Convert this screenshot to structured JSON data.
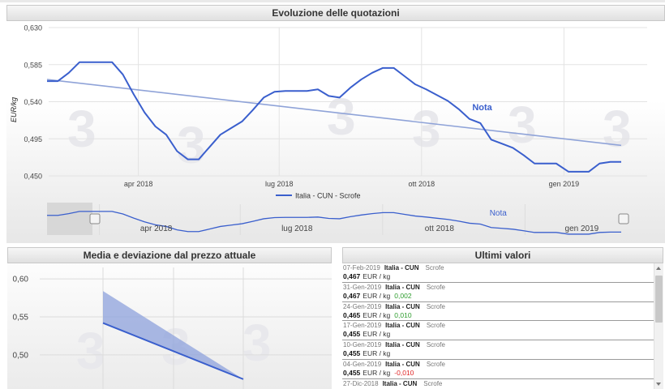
{
  "main_chart": {
    "title": "Evoluzione delle quotazioni",
    "ylabel": "EUR/kg",
    "legend": "Italia - CUN - Scrofe",
    "annotation": "Nota",
    "series_color": "#3a5fcd",
    "trend_color": "#8fa3d8",
    "selection_color": "#d7d7d7"
  },
  "navigator": {
    "annotation": "Nota",
    "tick_labels": [
      "apr 2018",
      "lug 2018",
      "ott 2018",
      "gen 2019"
    ]
  },
  "stats_panel": {
    "title": "Media e deviazione dal prezzo attuale"
  },
  "list_panel": {
    "title": "Ultimi valori",
    "rows": [
      {
        "date": "07-Feb-2019",
        "name": "Italia - CUN",
        "category": "Scrofe",
        "value": "0,467",
        "unit": "EUR / kg",
        "delta": "",
        "delta_sign": ""
      },
      {
        "date": "31-Gen-2019",
        "name": "Italia - CUN",
        "category": "Scrofe",
        "value": "0,467",
        "unit": "EUR / kg",
        "delta": "0,002",
        "delta_sign": "pos"
      },
      {
        "date": "24-Gen-2019",
        "name": "Italia - CUN",
        "category": "Scrofe",
        "value": "0,465",
        "unit": "EUR / kg",
        "delta": "0,010",
        "delta_sign": "pos"
      },
      {
        "date": "17-Gen-2019",
        "name": "Italia - CUN",
        "category": "Scrofe",
        "value": "0,455",
        "unit": "EUR / kg",
        "delta": "",
        "delta_sign": ""
      },
      {
        "date": "10-Gen-2019",
        "name": "Italia - CUN",
        "category": "Scrofe",
        "value": "0,455",
        "unit": "EUR / kg",
        "delta": "",
        "delta_sign": ""
      },
      {
        "date": "04-Gen-2019",
        "name": "Italia - CUN",
        "category": "Scrofe",
        "value": "0,455",
        "unit": "EUR / kg",
        "delta": "-0,010",
        "delta_sign": "neg"
      },
      {
        "date": "27-Dic-2018",
        "name": "Italia - CUN",
        "category": "Scrofe",
        "value": "",
        "unit": "",
        "delta": "",
        "delta_sign": ""
      }
    ]
  },
  "chart_data": [
    {
      "type": "line",
      "title": "Evoluzione delle quotazioni",
      "xlabel": "",
      "ylabel": "EUR/kg",
      "ylim": [
        0.45,
        0.63
      ],
      "y_ticks": [
        "0,630",
        "0,585",
        "0,540",
        "0,495",
        "0,450"
      ],
      "y_tick_values": [
        0.63,
        0.585,
        0.54,
        0.495,
        0.45
      ],
      "x_ticks": [
        "apr 2018",
        "lug 2018",
        "ott 2018",
        "gen 2019"
      ],
      "x_tick_dates": [
        "2018-04-01",
        "2018-07-01",
        "2018-10-01",
        "2019-01-01"
      ],
      "xlim": [
        "2018-02-01",
        "2019-02-07"
      ],
      "grid": true,
      "legend_position": "bottom",
      "series": [
        {
          "name": "Italia - CUN - Scrofe",
          "x": [
            "2018-02-01",
            "2018-02-08",
            "2018-02-15",
            "2018-02-22",
            "2018-03-01",
            "2018-03-08",
            "2018-03-15",
            "2018-03-22",
            "2018-03-29",
            "2018-04-05",
            "2018-04-12",
            "2018-04-19",
            "2018-04-26",
            "2018-05-03",
            "2018-05-10",
            "2018-05-17",
            "2018-05-24",
            "2018-05-31",
            "2018-06-07",
            "2018-06-14",
            "2018-06-21",
            "2018-06-28",
            "2018-07-05",
            "2018-07-12",
            "2018-07-19",
            "2018-07-26",
            "2018-08-02",
            "2018-08-09",
            "2018-08-16",
            "2018-08-23",
            "2018-08-30",
            "2018-09-06",
            "2018-09-13",
            "2018-09-20",
            "2018-09-27",
            "2018-10-04",
            "2018-10-11",
            "2018-10-18",
            "2018-10-25",
            "2018-11-01",
            "2018-11-08",
            "2018-11-15",
            "2018-11-22",
            "2018-11-29",
            "2018-12-06",
            "2018-12-13",
            "2018-12-20",
            "2018-12-27",
            "2019-01-04",
            "2019-01-10",
            "2019-01-17",
            "2019-01-24",
            "2019-01-31",
            "2019-02-07"
          ],
          "y": [
            0.565,
            0.565,
            0.575,
            0.588,
            0.588,
            0.588,
            0.588,
            0.573,
            0.549,
            0.527,
            0.51,
            0.5,
            0.48,
            0.47,
            0.47,
            0.485,
            0.5,
            0.508,
            0.516,
            0.53,
            0.545,
            0.552,
            0.553,
            0.553,
            0.553,
            0.555,
            0.547,
            0.545,
            0.557,
            0.567,
            0.575,
            0.581,
            0.581,
            0.571,
            0.561,
            0.555,
            0.548,
            0.541,
            0.531,
            0.519,
            0.514,
            0.494,
            0.489,
            0.484,
            0.475,
            0.465,
            0.465,
            0.465,
            0.455,
            0.455,
            0.455,
            0.465,
            0.467,
            0.467
          ]
        },
        {
          "name": "",
          "x": [
            "2018-02-01",
            "2019-02-07"
          ],
          "y": [
            0.567,
            0.487
          ]
        }
      ],
      "annotations": [
        "Nota"
      ]
    },
    {
      "type": "area",
      "title": "Media e deviazione dal prezzo attuale",
      "ylim": [
        0.47,
        0.63
      ],
      "y_ticks": [
        "0,60",
        "0,55",
        "0,50"
      ],
      "y_tick_values": [
        0.6,
        0.55,
        0.5
      ],
      "grid": true,
      "series": [
        {
          "name": "",
          "x": [
            0,
            1
          ],
          "y": [
            0.542,
            0.468
          ]
        },
        {
          "name": "",
          "x": [
            0,
            1
          ],
          "lower": [
            0.542,
            0.468
          ],
          "upper": [
            0.584,
            0.468
          ]
        }
      ]
    }
  ]
}
